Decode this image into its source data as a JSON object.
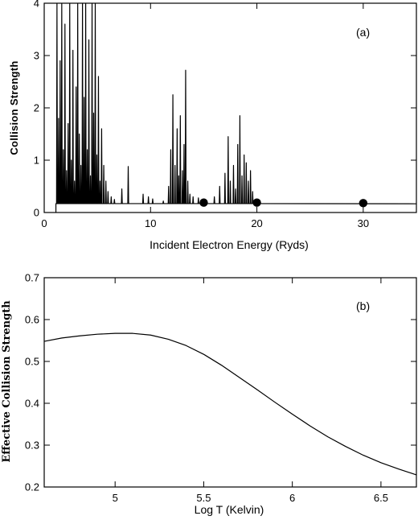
{
  "chart_data": [
    {
      "type": "line",
      "panel_label": "(a)",
      "xlabel": "Incident Electron Energy (Ryds)",
      "ylabel": "Collision Strength",
      "xlim": [
        0,
        35
      ],
      "ylim": [
        0,
        4
      ],
      "xticks": [
        0,
        10,
        20,
        30
      ],
      "yticks": [
        0,
        1,
        2,
        3,
        4
      ],
      "grid": false,
      "background": 0.17,
      "threshold": 1.1,
      "resonances": [
        [
          1.2,
          4.0
        ],
        [
          1.35,
          1.8
        ],
        [
          1.5,
          2.9
        ],
        [
          1.65,
          4.0
        ],
        [
          1.8,
          1.2
        ],
        [
          1.95,
          3.6
        ],
        [
          2.1,
          0.8
        ],
        [
          2.25,
          1.7
        ],
        [
          2.4,
          4.0
        ],
        [
          2.55,
          1.0
        ],
        [
          2.7,
          3.1
        ],
        [
          2.85,
          0.6
        ],
        [
          3.0,
          2.4
        ],
        [
          3.15,
          4.0
        ],
        [
          3.3,
          1.5
        ],
        [
          3.45,
          0.9
        ],
        [
          3.6,
          4.0
        ],
        [
          3.75,
          2.2
        ],
        [
          3.9,
          4.0
        ],
        [
          4.05,
          1.2
        ],
        [
          4.2,
          3.3
        ],
        [
          4.35,
          0.7
        ],
        [
          4.5,
          4.0
        ],
        [
          4.65,
          1.9
        ],
        [
          4.8,
          4.0
        ],
        [
          4.95,
          1.1
        ],
        [
          5.1,
          2.6
        ],
        [
          5.25,
          0.6
        ],
        [
          5.4,
          1.6
        ],
        [
          5.6,
          0.9
        ],
        [
          5.8,
          0.6
        ],
        [
          6.0,
          0.4
        ],
        [
          6.3,
          0.3
        ],
        [
          6.6,
          0.25
        ],
        [
          7.3,
          0.45
        ],
        [
          7.9,
          0.88
        ],
        [
          9.3,
          0.35
        ],
        [
          9.8,
          0.3
        ],
        [
          10.2,
          0.26
        ],
        [
          11.2,
          0.22
        ],
        [
          11.7,
          0.5
        ],
        [
          11.9,
          1.2
        ],
        [
          12.1,
          2.25
        ],
        [
          12.3,
          0.9
        ],
        [
          12.5,
          1.6
        ],
        [
          12.65,
          0.7
        ],
        [
          12.8,
          1.85
        ],
        [
          13.0,
          0.8
        ],
        [
          13.15,
          1.3
        ],
        [
          13.3,
          2.72
        ],
        [
          13.5,
          0.6
        ],
        [
          13.7,
          0.35
        ],
        [
          14.0,
          0.3
        ],
        [
          14.5,
          0.28
        ],
        [
          16.0,
          0.3
        ],
        [
          16.5,
          0.5
        ],
        [
          17.0,
          0.75
        ],
        [
          17.3,
          1.45
        ],
        [
          17.5,
          0.6
        ],
        [
          17.8,
          0.9
        ],
        [
          18.0,
          0.45
        ],
        [
          18.2,
          1.3
        ],
        [
          18.4,
          1.85
        ],
        [
          18.6,
          0.7
        ],
        [
          18.8,
          1.1
        ],
        [
          19.0,
          0.95
        ],
        [
          19.2,
          0.6
        ],
        [
          19.4,
          0.8
        ],
        [
          19.6,
          0.4
        ]
      ],
      "points": [
        {
          "x": 15,
          "y": 0.19
        },
        {
          "x": 20,
          "y": 0.19
        },
        {
          "x": 30,
          "y": 0.18
        }
      ]
    },
    {
      "type": "line",
      "panel_label": "(b)",
      "xlabel": "Log T (Kelvin)",
      "ylabel": "Effective Collision Strength",
      "xlim": [
        4.6,
        6.7
      ],
      "ylim": [
        0.2,
        0.7
      ],
      "xticks": [
        5,
        5.5,
        6,
        6.5
      ],
      "yticks": [
        0.2,
        0.3,
        0.4,
        0.5,
        0.6,
        0.7
      ],
      "grid": false,
      "x": [
        4.6,
        4.7,
        4.8,
        4.9,
        5.0,
        5.1,
        5.2,
        5.3,
        5.4,
        5.5,
        5.6,
        5.7,
        5.8,
        5.9,
        6.0,
        6.1,
        6.2,
        6.3,
        6.4,
        6.5,
        6.6,
        6.7
      ],
      "y": [
        0.548,
        0.556,
        0.561,
        0.565,
        0.567,
        0.567,
        0.563,
        0.553,
        0.538,
        0.517,
        0.491,
        0.462,
        0.433,
        0.403,
        0.374,
        0.346,
        0.32,
        0.297,
        0.276,
        0.258,
        0.243,
        0.229
      ]
    }
  ]
}
